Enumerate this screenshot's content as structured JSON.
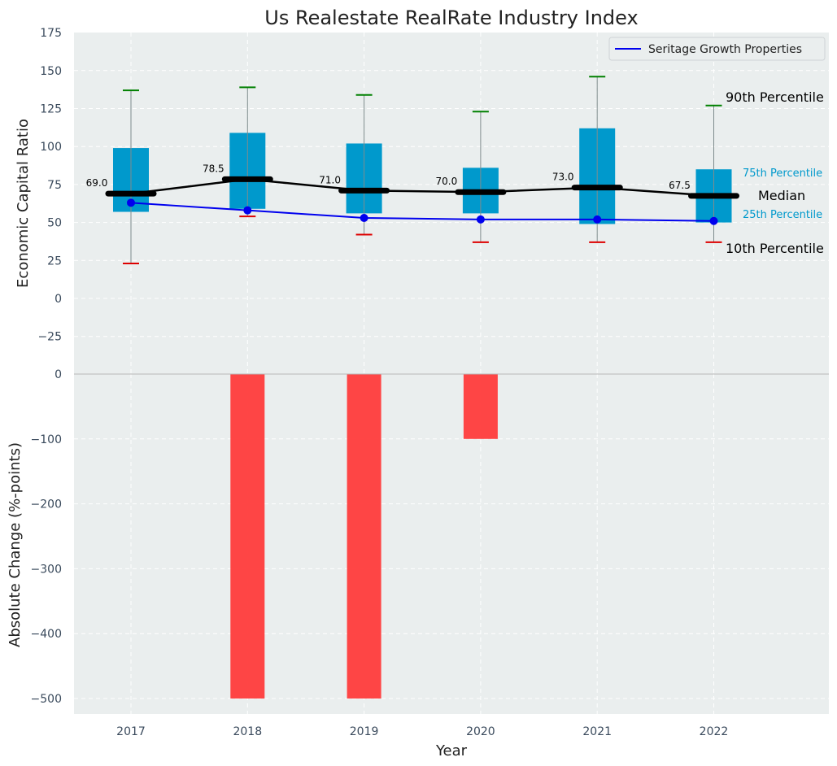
{
  "chart_data": [
    {
      "type": "box",
      "title": "Us Realestate RealRate Industry Index",
      "ylabel": "Economic Capital Ratio",
      "ylim": [
        -40,
        175
      ],
      "yticks": [
        -25,
        0,
        25,
        50,
        75,
        100,
        125,
        150,
        175
      ],
      "ytick_labels": [
        "−25",
        "0",
        "25",
        "50",
        "75",
        "100",
        "125",
        "150",
        "175"
      ],
      "categories": [
        "2017",
        "2018",
        "2019",
        "2020",
        "2021",
        "2022"
      ],
      "p10": [
        23,
        54,
        42,
        37,
        37,
        37
      ],
      "p25": [
        57,
        59,
        56,
        56,
        49,
        50
      ],
      "median": [
        69.0,
        78.5,
        71.0,
        70.0,
        73.0,
        67.5
      ],
      "median_labels": [
        "69.0",
        "78.5",
        "71.0",
        "70.0",
        "73.0",
        "67.5"
      ],
      "p75": [
        99,
        109,
        102,
        86,
        112,
        85
      ],
      "p90": [
        137,
        139,
        134,
        123,
        146,
        127
      ],
      "series": [
        {
          "name": "Seritage Growth Properties",
          "values": [
            63,
            58,
            53,
            52,
            52,
            51
          ]
        }
      ],
      "legend_position": "top-right",
      "annotations": {
        "p90": "90th Percentile",
        "p75": "75th Percentile",
        "median": "Median",
        "p25": "25th Percentile",
        "p10": "10th Percentile"
      },
      "grid": true,
      "colors": {
        "box": "#0099cc",
        "median_line": "#000000",
        "series": "#0000ee",
        "whisker_top": "#008000",
        "whisker_bottom": "#dd0000",
        "background": "#eaeeee"
      }
    },
    {
      "type": "bar",
      "xlabel": "Year",
      "ylabel": "Absolute Change (%-points)",
      "ylim": [
        -525,
        0
      ],
      "yticks": [
        -500,
        -400,
        -300,
        -200,
        -100,
        0
      ],
      "ytick_labels": [
        "−500",
        "−400",
        "−300",
        "−200",
        "−100",
        "0"
      ],
      "categories": [
        "2017",
        "2018",
        "2019",
        "2020",
        "2021",
        "2022"
      ],
      "values": [
        0,
        -500,
        -500,
        -100,
        0,
        0
      ],
      "grid": true,
      "colors": {
        "bar": "#ff3b3b",
        "background": "#eaeeee"
      }
    }
  ]
}
